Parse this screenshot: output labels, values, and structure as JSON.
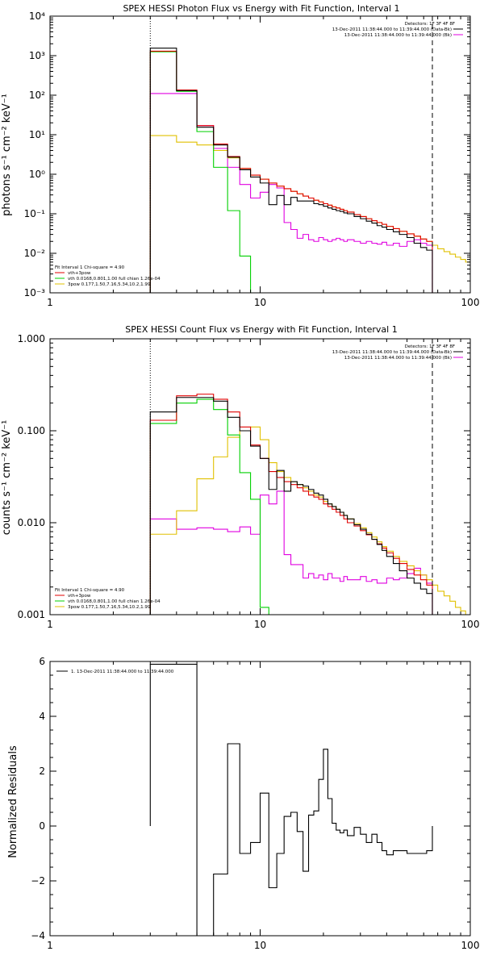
{
  "panels": [
    {
      "title": "SPEX HESSI Photon Flux vs Energy with Fit Function, Interval 1",
      "ylabel": "photons s⁻¹ cm⁻² keV⁻¹",
      "legend_right": [
        "Detectors: 1F 3F 4F 8F",
        "13-Dec-2011 11:38:44.000 to 11:39:44.000 (Data-Bk)",
        "13-Dec-2011 11:38:44.000 to 11:39:44.000 (Bk)"
      ],
      "legend_left": [
        "Fit Interval 1   Chi-square = 4.90",
        "vth+3pow",
        "vth 0.0168,0.801,1.00  full chian 1.26e-04",
        "3pow 0.177,1.50,7.16,5.34,10.2,1.99"
      ]
    },
    {
      "title": "SPEX HESSI Count Flux vs Energy with Fit Function, Interval 1",
      "ylabel": "counts s⁻¹ cm⁻² keV⁻¹",
      "legend_right": [
        "Detectors: 1F 3F 4F 8F",
        "13-Dec-2011 11:38:44.000 to 11:39:44.000 (Data-Bk)",
        "13-Dec-2011 11:38:44.000 to 11:39:44.000 (Bk)"
      ],
      "legend_left": [
        "Fit Interval 1   Chi-square = 4.90",
        "vth+3pow",
        "vth 0.0168,0.801,1.00  full chian 1.26e-04",
        "3pow 0.177,1.50,7.16,5.34,10.2,1.99"
      ]
    },
    {
      "title": "",
      "ylabel": "Normalized Residuals",
      "legend_right": [],
      "legend_left": [
        "1. 13-Dec-2011 11:38:44.000 to 11:39:44.000"
      ]
    }
  ],
  "colors": {
    "data": "#000000",
    "fit_total": "#e00000",
    "vth": "#00d000",
    "pow": "#e0c000",
    "bk": "#e000e0",
    "axes": "#000000"
  },
  "chart_data": [
    {
      "type": "line",
      "title": "SPEX HESSI Photon Flux vs Energy with Fit Function, Interval 1",
      "xlabel": "",
      "ylabel": "photons s⁻¹ cm⁻² keV⁻¹",
      "xscale": "log",
      "yscale": "log",
      "xlim": [
        1,
        100
      ],
      "ylim": [
        0.001,
        10000
      ],
      "xticks": [
        1,
        10,
        100
      ],
      "xtick_labels": [
        "1",
        "10",
        "100"
      ],
      "yticks": [
        0.001,
        0.01,
        0.1,
        1,
        10,
        100,
        1000,
        10000
      ],
      "ytick_labels": [
        "10⁻³",
        "10⁻²",
        "10⁻¹",
        "10⁰",
        "10¹",
        "10²",
        "10³",
        "10⁴"
      ],
      "vlines": [
        {
          "x": 3,
          "style": "dotted"
        },
        {
          "x": 66,
          "style": "dashed"
        }
      ],
      "bin_edges": [
        3,
        4,
        5,
        6,
        7,
        8,
        9,
        10,
        11,
        12,
        13,
        14,
        15,
        16,
        17,
        18,
        19,
        20,
        21,
        22,
        23,
        24,
        25,
        26,
        28,
        30,
        32,
        34,
        36,
        38,
        40,
        43,
        46,
        50,
        54,
        58,
        62,
        66,
        70,
        75,
        80,
        85,
        90,
        95,
        100
      ],
      "series": [
        {
          "name": "Data-Bk",
          "color": "data",
          "values": [
            1550,
            130,
            15.5,
            5.5,
            2.7,
            1.3,
            0.85,
            0.6,
            0.17,
            0.29,
            0.17,
            0.26,
            0.21,
            0.21,
            0.21,
            0.18,
            0.17,
            0.155,
            0.14,
            0.13,
            0.12,
            0.115,
            0.105,
            0.1,
            0.085,
            0.075,
            0.065,
            0.058,
            0.05,
            0.046,
            0.04,
            0.035,
            0.03,
            0.025,
            0.018,
            0.014,
            0.012
          ]
        },
        {
          "name": "vth+3pow",
          "color": "fit_total",
          "values": [
            1300,
            135,
            17,
            5.8,
            2.8,
            1.4,
            0.95,
            0.75,
            0.6,
            0.5,
            0.43,
            0.37,
            0.32,
            0.28,
            0.25,
            0.22,
            0.2,
            0.18,
            0.165,
            0.15,
            0.14,
            0.13,
            0.12,
            0.11,
            0.095,
            0.085,
            0.075,
            0.067,
            0.06,
            0.054,
            0.048,
            0.042,
            0.036,
            0.031,
            0.027,
            0.023,
            0.02
          ]
        },
        {
          "name": "vth",
          "color": "vth",
          "values": [
            1250,
            125,
            12,
            1.5,
            0.12,
            0.0085,
            0.0005
          ]
        },
        {
          "name": "3pow",
          "color": "pow",
          "values": [
            9.5,
            6.5,
            5.5,
            4.0,
            2.6,
            1.4,
            0.95,
            0.75,
            0.6,
            0.5,
            0.43,
            0.37,
            0.32,
            0.28,
            0.25,
            0.22,
            0.2,
            0.18,
            0.165,
            0.15,
            0.14,
            0.13,
            0.12,
            0.11,
            0.095,
            0.085,
            0.075,
            0.067,
            0.06,
            0.054,
            0.048,
            0.042,
            0.036,
            0.031,
            0.027,
            0.023,
            0.02,
            0.016,
            0.013,
            0.011,
            0.0095,
            0.008,
            0.007,
            0.006
          ]
        },
        {
          "name": "Bk",
          "color": "bk",
          "values": [
            110,
            110,
            17,
            4.5,
            1.5,
            0.55,
            0.25,
            0.35,
            0.55,
            0.45,
            0.06,
            0.04,
            0.024,
            0.03,
            0.022,
            0.02,
            0.025,
            0.022,
            0.02,
            0.022,
            0.024,
            0.022,
            0.02,
            0.022,
            0.02,
            0.018,
            0.02,
            0.018,
            0.017,
            0.019,
            0.016,
            0.018,
            0.015,
            0.02,
            0.022,
            0.018,
            0.016
          ]
        }
      ]
    },
    {
      "type": "line",
      "title": "SPEX HESSI Count Flux vs Energy with Fit Function, Interval 1",
      "xlabel": "",
      "ylabel": "counts s⁻¹ cm⁻² keV⁻¹",
      "xscale": "log",
      "yscale": "log",
      "xlim": [
        1,
        100
      ],
      "ylim": [
        0.001,
        1.0
      ],
      "xticks": [
        1,
        10,
        100
      ],
      "xtick_labels": [
        "1",
        "10",
        "100"
      ],
      "yticks": [
        0.001,
        0.01,
        0.1,
        1.0
      ],
      "ytick_labels": [
        "0.001",
        "0.010",
        "0.100",
        "1.000"
      ],
      "vlines": [
        {
          "x": 3,
          "style": "dotted"
        },
        {
          "x": 66,
          "style": "dashed"
        }
      ],
      "bin_edges": [
        3,
        4,
        5,
        6,
        7,
        8,
        9,
        10,
        11,
        12,
        13,
        14,
        15,
        16,
        17,
        18,
        19,
        20,
        21,
        22,
        23,
        24,
        25,
        26,
        28,
        30,
        32,
        34,
        36,
        38,
        40,
        43,
        46,
        50,
        54,
        58,
        62,
        66,
        70,
        75,
        80,
        85,
        90,
        95,
        100
      ],
      "series": [
        {
          "name": "Data-Bk",
          "color": "data",
          "values": [
            0.16,
            0.23,
            0.23,
            0.21,
            0.14,
            0.1,
            0.068,
            0.05,
            0.023,
            0.037,
            0.022,
            0.028,
            0.026,
            0.025,
            0.023,
            0.021,
            0.02,
            0.018,
            0.016,
            0.015,
            0.014,
            0.013,
            0.012,
            0.011,
            0.0095,
            0.0085,
            0.0075,
            0.0066,
            0.0058,
            0.005,
            0.0043,
            0.0036,
            0.003,
            0.0025,
            0.0022,
            0.0019,
            0.0017
          ]
        },
        {
          "name": "vth+3pow",
          "color": "fit_total",
          "values": [
            0.13,
            0.24,
            0.25,
            0.22,
            0.16,
            0.11,
            0.07,
            0.05,
            0.036,
            0.031,
            0.028,
            0.026,
            0.024,
            0.022,
            0.02,
            0.019,
            0.018,
            0.016,
            0.015,
            0.014,
            0.013,
            0.012,
            0.011,
            0.01,
            0.0092,
            0.0082,
            0.0074,
            0.0066,
            0.0059,
            0.0053,
            0.0047,
            0.0041,
            0.0036,
            0.0031,
            0.0027,
            0.0024,
            0.0021
          ]
        },
        {
          "name": "vth",
          "color": "vth",
          "values": [
            0.12,
            0.2,
            0.22,
            0.17,
            0.09,
            0.035,
            0.018,
            0.0012
          ]
        },
        {
          "name": "3pow",
          "color": "pow",
          "values": [
            0.0075,
            0.0135,
            0.03,
            0.052,
            0.085,
            0.1,
            0.11,
            0.08,
            0.045,
            0.036,
            0.031,
            0.028,
            0.026,
            0.024,
            0.022,
            0.02,
            0.019,
            0.017,
            0.016,
            0.015,
            0.014,
            0.013,
            0.012,
            0.011,
            0.0098,
            0.0088,
            0.0078,
            0.007,
            0.0062,
            0.0055,
            0.0049,
            0.0043,
            0.0038,
            0.0034,
            0.003,
            0.0027,
            0.0024,
            0.0021,
            0.0018,
            0.0016,
            0.0014,
            0.0012,
            0.0011,
            0.001
          ]
        },
        {
          "name": "Bk",
          "color": "bk",
          "values": [
            0.011,
            0.0085,
            0.0088,
            0.0085,
            0.008,
            0.009,
            0.0075,
            0.02,
            0.016,
            0.022,
            0.0045,
            0.0035,
            0.0035,
            0.0025,
            0.0028,
            0.0025,
            0.0027,
            0.0024,
            0.0028,
            0.0025,
            0.0025,
            0.0023,
            0.0026,
            0.0024,
            0.0024,
            0.0026,
            0.0023,
            0.0024,
            0.0022,
            0.0022,
            0.0025,
            0.0024,
            0.0025,
            0.0028,
            0.0032,
            0.0027,
            0.0022
          ]
        }
      ]
    },
    {
      "type": "line",
      "title": "",
      "xlabel": "",
      "ylabel": "Normalized Residuals",
      "xscale": "log",
      "yscale": "linear",
      "xlim": [
        1,
        100
      ],
      "ylim": [
        -4,
        6
      ],
      "xticks": [
        1,
        10,
        100
      ],
      "xtick_labels": [
        "1",
        "10",
        "100"
      ],
      "yticks": [
        -4,
        -2,
        0,
        2,
        4,
        6
      ],
      "ytick_labels": [
        "−4",
        "−2",
        "0",
        "2",
        "4",
        "6"
      ],
      "bin_edges": [
        3,
        4,
        5,
        6,
        7,
        8,
        9,
        10,
        11,
        12,
        13,
        14,
        15,
        16,
        17,
        18,
        19,
        20,
        21,
        22,
        23,
        24,
        25,
        26,
        28,
        30,
        32,
        34,
        36,
        38,
        40,
        43,
        46,
        50,
        54,
        58,
        62,
        66
      ],
      "series": [
        {
          "name": "1. 13-Dec-2011 11:38:44.000 to 11:39:44.000",
          "color": "data",
          "values": [
            5.9,
            5.9,
            -4.1,
            -1.75,
            3.0,
            -1.0,
            -0.6,
            1.2,
            -2.25,
            -1.0,
            0.35,
            0.5,
            -0.2,
            -1.65,
            0.4,
            0.55,
            1.7,
            2.8,
            1.0,
            0.1,
            -0.15,
            -0.25,
            -0.15,
            -0.35,
            -0.05,
            -0.3,
            -0.6,
            -0.3,
            -0.6,
            -0.9,
            -1.05,
            -0.9,
            -0.9,
            -1.0,
            -1.0,
            -1.0,
            -0.9
          ]
        }
      ]
    }
  ]
}
